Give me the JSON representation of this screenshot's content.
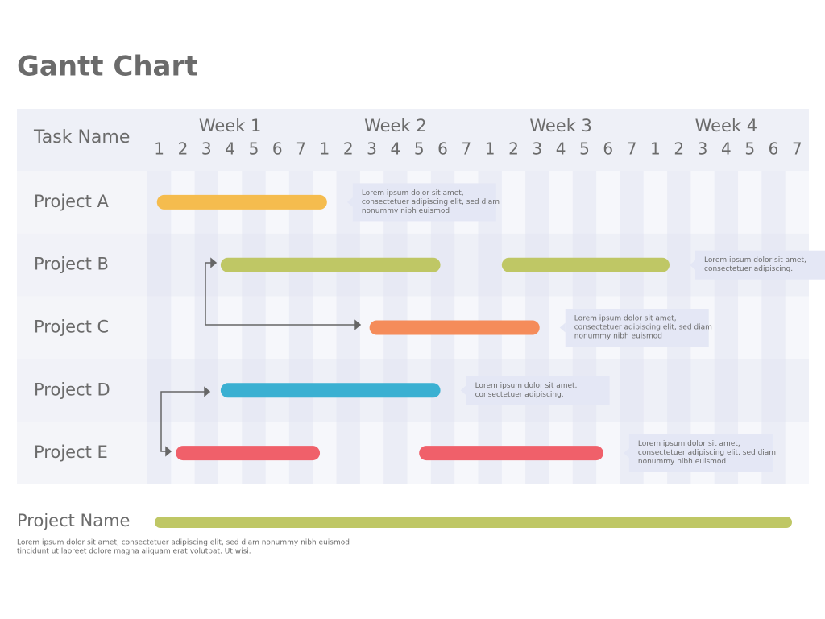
{
  "chart_data": {
    "type": "gantt",
    "title": "Gantt Chart",
    "header": "Task Name",
    "weeks": [
      {
        "label": "Week 1",
        "days": [
          1,
          2,
          3,
          4,
          5,
          6,
          7
        ]
      },
      {
        "label": "Week 2",
        "days": [
          1,
          2,
          3,
          4,
          5,
          6,
          7
        ]
      },
      {
        "label": "Week 3",
        "days": [
          1,
          2,
          3,
          4,
          5,
          6,
          7
        ]
      },
      {
        "label": "Week 4",
        "days": [
          1,
          2,
          3,
          4,
          5,
          6,
          7
        ]
      }
    ],
    "xlim": [
      0,
      28
    ],
    "tasks": [
      {
        "name": "Project A",
        "color": "#f5bc4e",
        "bars": [
          [
            0.4,
            7.6
          ]
        ],
        "note": [
          "Lorem ipsum dolor sit amet,",
          "consectetuer adipiscing elit, sed diam",
          "nonummy nibh euismod"
        ]
      },
      {
        "name": "Project B",
        "color": "#bfc765",
        "bars": [
          [
            3.1,
            12.4
          ],
          [
            15.0,
            22.1
          ]
        ],
        "note": [
          "Lorem ipsum dolor sit amet,",
          "consectetuer adipiscing."
        ]
      },
      {
        "name": "Project C",
        "color": "#f58c5a",
        "bars": [
          [
            9.4,
            16.6
          ]
        ],
        "note": [
          "Lorem ipsum dolor sit amet,",
          "consectetuer adipiscing elit, sed diam",
          "nonummy nibh euismod"
        ]
      },
      {
        "name": "Project D",
        "color": "#3ab0d2",
        "bars": [
          [
            3.1,
            12.4
          ]
        ],
        "note": [
          "Lorem ipsum dolor sit amet,",
          "consectetuer adipiscing."
        ]
      },
      {
        "name": "Project E",
        "color": "#f0606a",
        "bars": [
          [
            1.2,
            7.3
          ],
          [
            11.5,
            19.3
          ]
        ],
        "note": [
          "Lorem ipsum dolor sit amet,",
          "consectetuer adipiscing elit, sed diam",
          "nonummy nibh euismod"
        ]
      }
    ],
    "legend": {
      "name": "Project Name",
      "color": "#bfc765",
      "description": [
        "Lorem ipsum dolor sit amet, consectetuer adipiscing elit, sed diam nonummy nibh euismod",
        "tincidunt ut laoreet dolore magna aliquam erat volutpat. Ut wisi."
      ]
    }
  }
}
